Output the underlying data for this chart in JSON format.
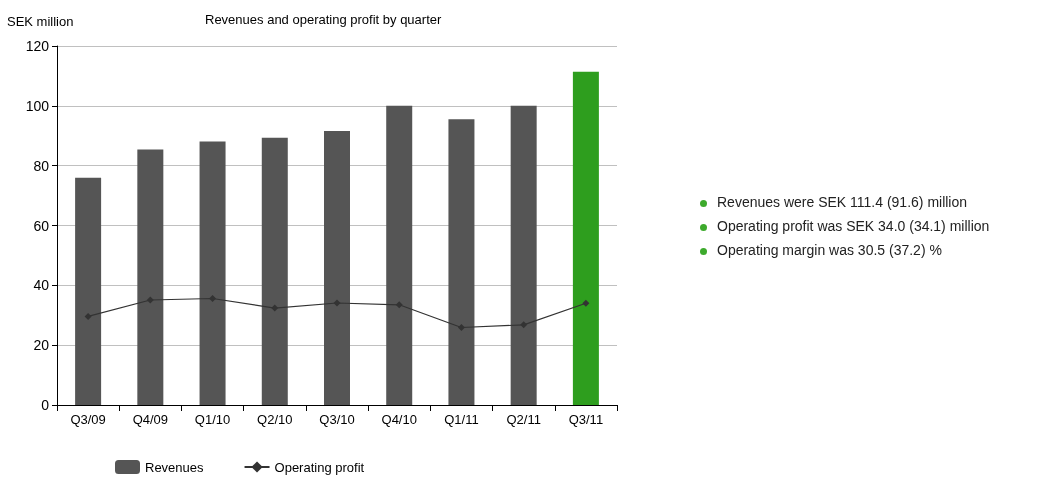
{
  "chart_data": {
    "type": "bar",
    "title": "Revenues and operating profit by quarter",
    "ylabel": "SEK million",
    "categories": [
      "Q3/09",
      "Q4/09",
      "Q1/10",
      "Q2/10",
      "Q3/10",
      "Q4/10",
      "Q1/11",
      "Q2/11",
      "Q3/11"
    ],
    "series": [
      {
        "name": "Revenues",
        "color": "#555555",
        "colors": [
          "#555555",
          "#555555",
          "#555555",
          "#555555",
          "#555555",
          "#555555",
          "#555555",
          "#555555",
          "#2e9e1e"
        ],
        "values": [
          76,
          85.4,
          88.1,
          89.3,
          91.6,
          100,
          95.5,
          100,
          111.4
        ]
      },
      {
        "name": "Operating profit",
        "type": "line",
        "color": "#333333",
        "marker": "diamond",
        "values": [
          29.6,
          35.1,
          35.6,
          32.4,
          34.1,
          33.5,
          25.9,
          26.8,
          34.0
        ]
      }
    ],
    "ylim": [
      0,
      120
    ],
    "yticks": [
      0,
      20,
      40,
      60,
      80,
      100,
      120
    ],
    "grid": "y",
    "legend": "bottom",
    "annotations": [
      "Revenues were SEK 111.4 (91.6) million",
      "Operating profit was SEK 34.0 (34.1) million",
      "Operating margin was 30.5 (37.2) %"
    ]
  }
}
